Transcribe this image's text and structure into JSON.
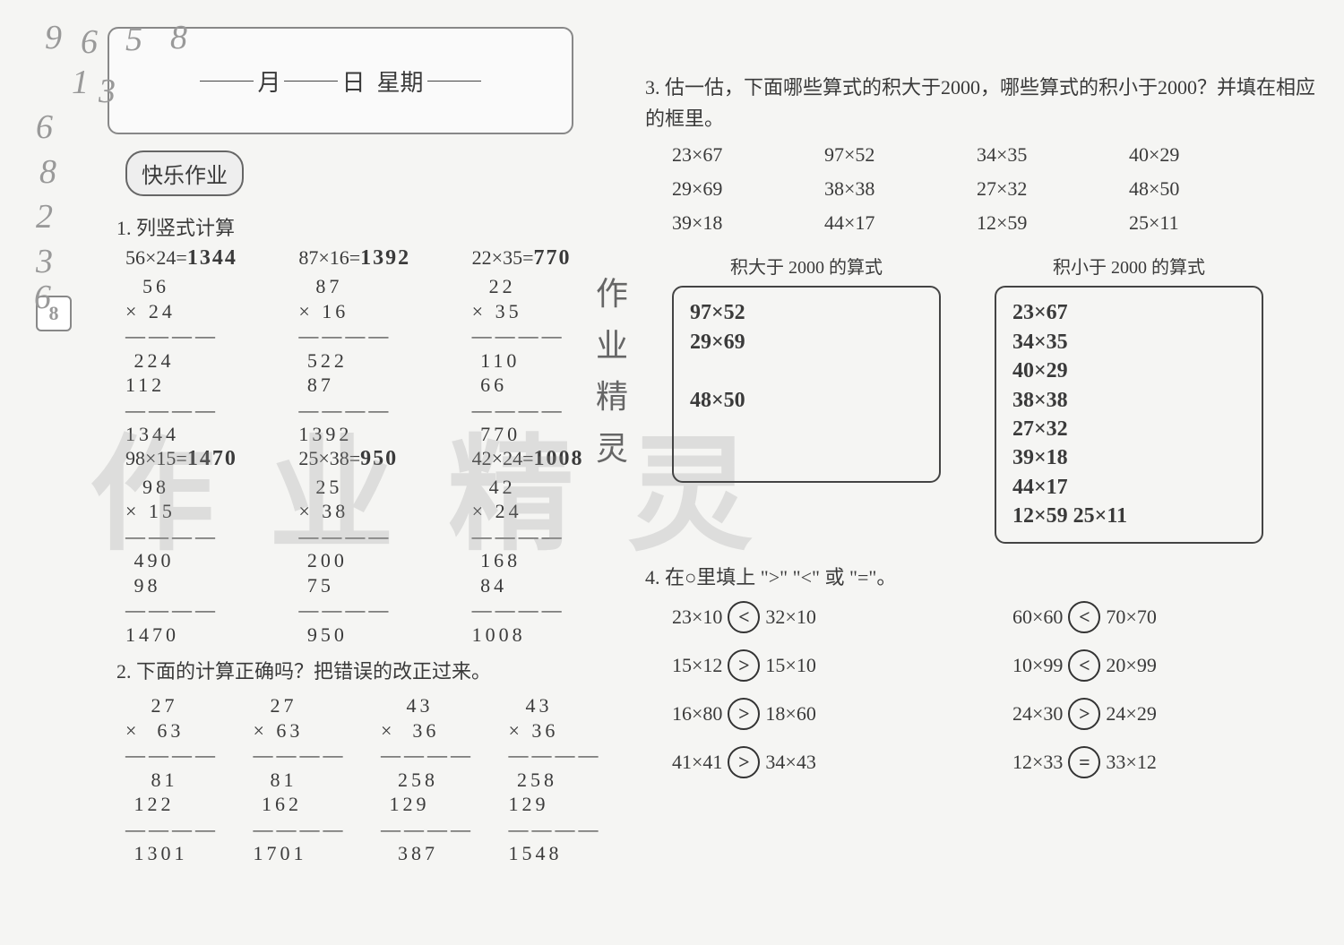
{
  "page_number": "8",
  "decor_numbers": [
    "9",
    "6",
    "5",
    "8",
    "1",
    "3",
    "6",
    "8",
    "2",
    "3",
    "6"
  ],
  "decor_positions": [
    {
      "l": 20,
      "t": 0
    },
    {
      "l": 60,
      "t": 5
    },
    {
      "l": 110,
      "t": 2
    },
    {
      "l": 160,
      "t": 0
    },
    {
      "l": 50,
      "t": 50
    },
    {
      "l": 80,
      "t": 60
    },
    {
      "l": 10,
      "t": 100
    },
    {
      "l": 14,
      "t": 150
    },
    {
      "l": 10,
      "t": 200
    },
    {
      "l": 10,
      "t": 250
    },
    {
      "l": 8,
      "t": 290
    }
  ],
  "header": {
    "month_label": "月",
    "day_label": "日",
    "week_label": "星期"
  },
  "hw_badge": "快乐作业",
  "watermark_text": "作业精灵",
  "vert_text": "作业精灵",
  "q1": {
    "title": "1. 列竖式计算",
    "items": [
      {
        "expr": "56×24=",
        "ans": "1344",
        "calc": "  56\n× 24\n————\n 224\n112\n————\n1344"
      },
      {
        "expr": "87×16=",
        "ans": "1392",
        "calc": "  87\n× 16\n————\n 522\n 87\n————\n1392"
      },
      {
        "expr": "22×35=",
        "ans": "770",
        "calc": "  22\n× 35\n————\n 110\n 66\n————\n 770"
      },
      {
        "expr": "98×15=",
        "ans": "1470",
        "calc": "  98\n× 15\n————\n 490\n 98\n————\n1470"
      },
      {
        "expr": "25×38=",
        "ans": "950",
        "calc": "  25\n× 38\n————\n 200\n 75\n————\n 950"
      },
      {
        "expr": "42×24=",
        "ans": "1008",
        "calc": "  42\n× 24\n————\n 168\n 84\n————\n1008"
      }
    ]
  },
  "q2": {
    "title": "2. 下面的计算正确吗？把错误的改正过来。",
    "items": [
      {
        "print": "   27\n×  63\n————\n   81\n 122\n————\n 1301",
        "hand": "  27\n× 63\n————\n  81\n 162\n————\n1701"
      },
      {
        "print": "   43\n×  36\n————\n  258\n 129\n————\n  387",
        "hand": "  43\n× 36\n————\n 258\n129\n————\n1548"
      }
    ]
  },
  "q3": {
    "title": "3. 估一估，下面哪些算式的积大于2000，哪些算式的积小于2000？并填在相应的框里。",
    "exprs": [
      "23×67",
      "97×52",
      "34×35",
      "40×29",
      "29×69",
      "38×38",
      "27×32",
      "48×50",
      "39×18",
      "44×17",
      "12×59",
      "25×11"
    ],
    "box_gt_label": "积大于 2000 的算式",
    "box_lt_label": "积小于 2000 的算式",
    "gt_answers": "97×52\n29×69\n\n48×50",
    "lt_answers": "23×67\n34×35\n40×29\n38×38\n27×32\n39×18\n44×17\n12×59  25×11"
  },
  "q4": {
    "title": "4. 在○里填上 \">\" \"<\" 或 \"=\"。",
    "items": [
      {
        "l": "23×10",
        "op": "<",
        "r": "32×10"
      },
      {
        "l": "60×60",
        "op": "<",
        "r": "70×70"
      },
      {
        "l": "15×12",
        "op": ">",
        "r": "15×10"
      },
      {
        "l": "10×99",
        "op": "<",
        "r": "20×99"
      },
      {
        "l": "16×80",
        "op": ">",
        "r": "18×60"
      },
      {
        "l": "24×30",
        "op": ">",
        "r": "24×29"
      },
      {
        "l": "41×41",
        "op": ">",
        "r": "34×43"
      },
      {
        "l": "12×33",
        "op": "=",
        "r": "33×12"
      }
    ]
  },
  "colors": {
    "bg": "#f5f5f3",
    "text": "#3a3a3a",
    "border": "#444444",
    "hand": "#222222",
    "watermark": "rgba(150,150,150,0.25)"
  }
}
